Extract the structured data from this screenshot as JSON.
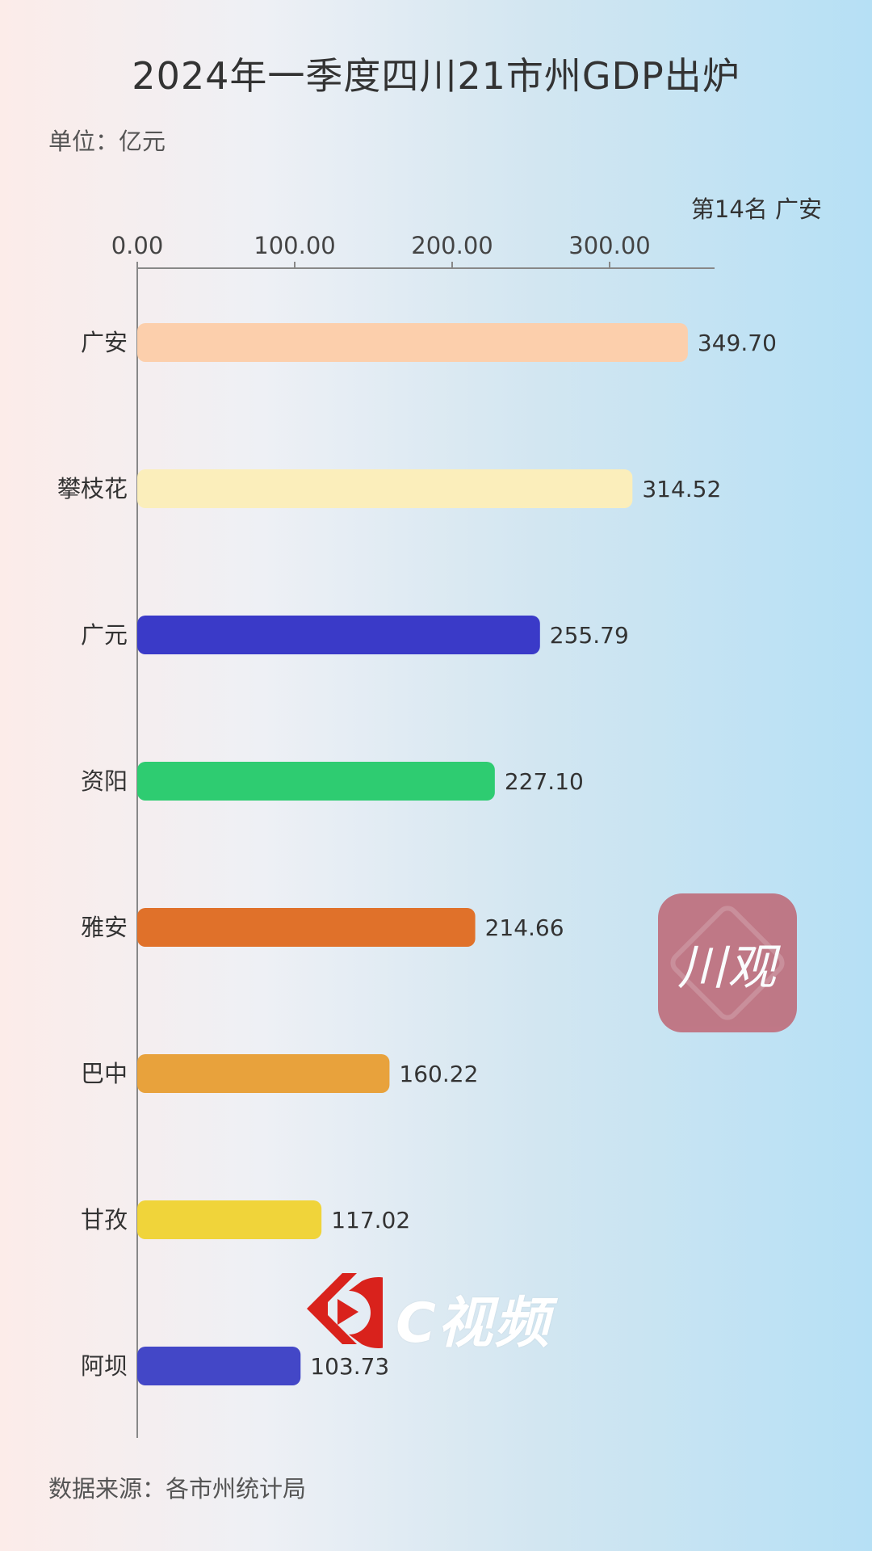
{
  "header": {
    "title": "2024年一季度四川21市州GDP出炉",
    "unit": "单位：亿元",
    "rank": "第14名 广安"
  },
  "footer": {
    "source": "数据来源：各市州统计局"
  },
  "watermarks": {
    "chuanguan": "川观",
    "cvideo": "C视频",
    "chuanguan_color": "#bf707e",
    "cvideo_icon_color": "#d9221c"
  },
  "chart_data": {
    "type": "bar",
    "orientation": "horizontal",
    "title": "2024年一季度四川21市州GDP出炉",
    "xlabel": "",
    "ylabel": "",
    "unit": "亿元",
    "xlim": [
      0,
      365
    ],
    "xticks": [
      0,
      100,
      200,
      300
    ],
    "xtick_labels": [
      "0.00",
      "100.00",
      "200.00",
      "300.00"
    ],
    "axis_position": "top",
    "grid": false,
    "categories": [
      "广安",
      "攀枝花",
      "广元",
      "资阳",
      "雅安",
      "巴中",
      "甘孜",
      "阿坝"
    ],
    "values": [
      349.7,
      314.52,
      255.79,
      227.1,
      214.66,
      160.22,
      117.02,
      103.73
    ],
    "value_labels": [
      "349.70",
      "314.52",
      "255.79",
      "227.10",
      "214.66",
      "160.22",
      "117.02",
      "103.73"
    ],
    "colors": [
      "#fccfac",
      "#fbeebb",
      "#3a3ac8",
      "#2ecc71",
      "#e0712a",
      "#e8a23c",
      "#f0d43a",
      "#4347c7"
    ]
  }
}
